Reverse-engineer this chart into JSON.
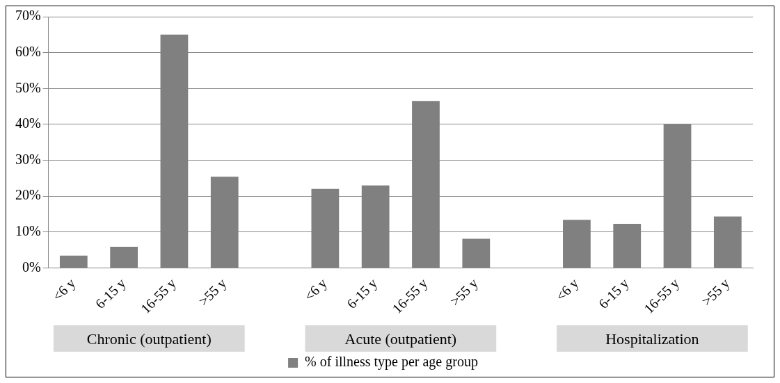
{
  "chart_data": {
    "type": "bar",
    "categories": [
      "<6 y",
      "6-15 y",
      "16-55 y",
      ">55 y",
      null,
      "<6 y",
      "6-15 y",
      "16-55 y",
      ">55 y",
      null,
      "<6 y",
      "6-15 y",
      "16-55 y",
      ">55 y"
    ],
    "series": [
      {
        "name": "% of illness type per age group",
        "color": "#808080",
        "values": [
          3.4,
          5.9,
          65,
          25.4,
          null,
          22,
          23,
          46.5,
          8.1,
          null,
          13.4,
          12.3,
          40,
          14.3
        ]
      }
    ],
    "ylim": [
      0,
      70
    ],
    "yticks": [
      {
        "value": 0,
        "label": "0%"
      },
      {
        "value": 10,
        "label": "10%"
      },
      {
        "value": 20,
        "label": "20%"
      },
      {
        "value": 30,
        "label": "30%"
      },
      {
        "value": 40,
        "label": "40%"
      },
      {
        "value": 50,
        "label": "50%"
      },
      {
        "value": 60,
        "label": "60%"
      },
      {
        "value": 70,
        "label": "70%"
      }
    ],
    "annotations": [
      "Chronic (outpatient)",
      "Acute (outpatient)",
      "Hospitalization"
    ],
    "grid": "y",
    "legend": "bottom"
  }
}
